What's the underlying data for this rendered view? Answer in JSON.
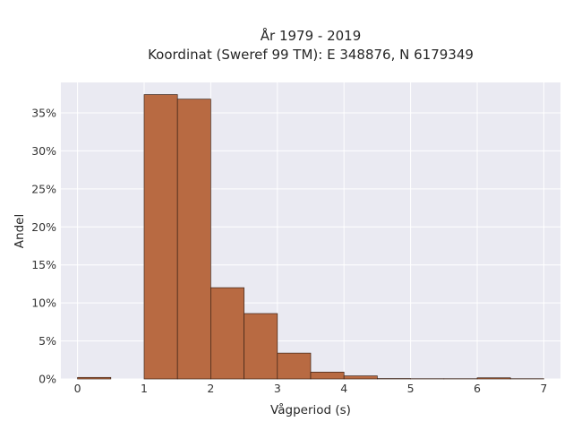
{
  "chart_data": {
    "type": "bar",
    "title": "År 1979 - 2019",
    "subtitle": "Koordinat (Sweref 99 TM): E 348876, N 6179349",
    "xlabel": "Vågperiod (s)",
    "ylabel": "Andel",
    "xlim": [
      -0.25,
      7.25
    ],
    "ylim": [
      0,
      0.39
    ],
    "xticks": [
      0,
      1,
      2,
      3,
      4,
      5,
      6,
      7
    ],
    "yticks": [
      0,
      0.05,
      0.1,
      0.15,
      0.2,
      0.25,
      0.3,
      0.35
    ],
    "ytick_labels": [
      "0%",
      "5%",
      "10%",
      "15%",
      "20%",
      "25%",
      "30%",
      "35%"
    ],
    "grid": true,
    "bar_color": "#b86a42",
    "background_color": "#eaeaf2",
    "bins": [
      {
        "x0": 0.0,
        "x1": 0.5,
        "value": 0.002
      },
      {
        "x0": 0.5,
        "x1": 1.0,
        "value": 0.0
      },
      {
        "x0": 1.0,
        "x1": 1.5,
        "value": 0.374
      },
      {
        "x0": 1.5,
        "x1": 2.0,
        "value": 0.368
      },
      {
        "x0": 2.0,
        "x1": 2.5,
        "value": 0.12
      },
      {
        "x0": 2.5,
        "x1": 3.0,
        "value": 0.086
      },
      {
        "x0": 3.0,
        "x1": 3.5,
        "value": 0.034
      },
      {
        "x0": 3.5,
        "x1": 4.0,
        "value": 0.009
      },
      {
        "x0": 4.0,
        "x1": 4.5,
        "value": 0.004
      },
      {
        "x0": 4.5,
        "x1": 5.0,
        "value": 0.0005
      },
      {
        "x0": 5.0,
        "x1": 5.5,
        "value": 0.0003
      },
      {
        "x0": 5.5,
        "x1": 6.0,
        "value": 0.0003
      },
      {
        "x0": 6.0,
        "x1": 6.5,
        "value": 0.0015
      },
      {
        "x0": 6.5,
        "x1": 7.0,
        "value": 0.0003
      }
    ]
  }
}
